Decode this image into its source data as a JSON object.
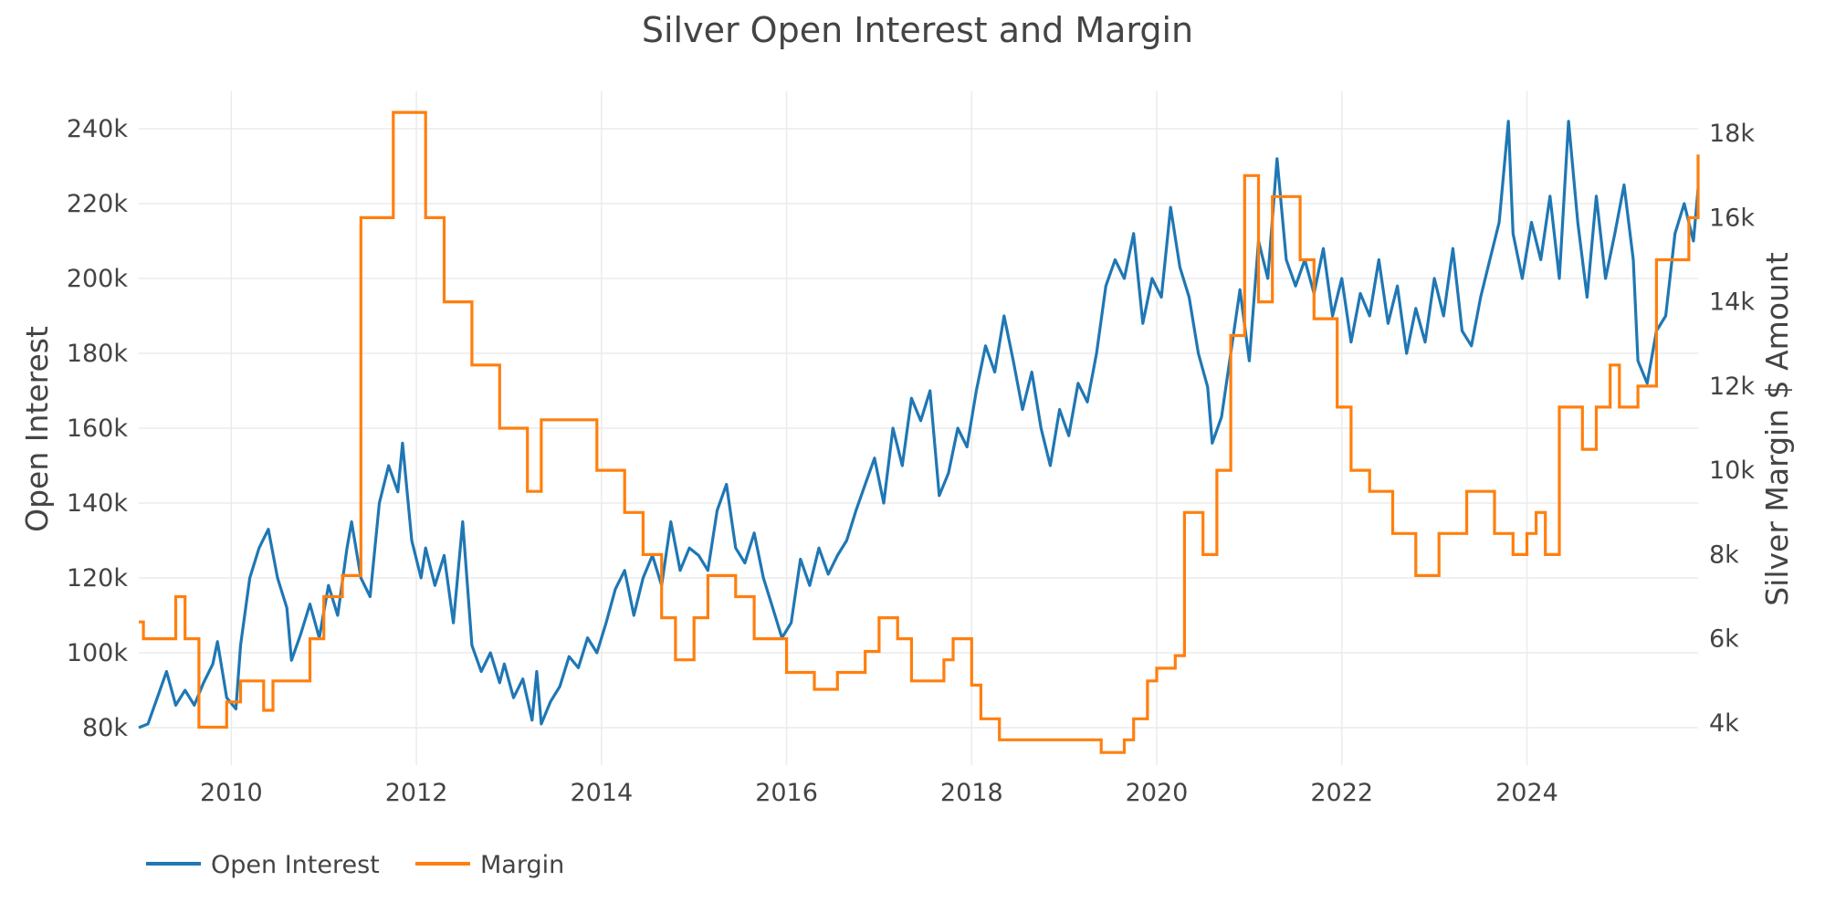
{
  "chart_data": {
    "type": "line",
    "title": "Silver Open Interest and Margin",
    "xlabel": "",
    "ylabel": "Open Interest",
    "y2label": "Silver Margin $ Amount",
    "x_range": [
      2009.0,
      2025.85
    ],
    "x_ticks": [
      2010,
      2012,
      2014,
      2016,
      2018,
      2020,
      2022,
      2024
    ],
    "x_tick_labels": [
      "2010",
      "2012",
      "2014",
      "2016",
      "2018",
      "2020",
      "2022",
      "2024"
    ],
    "y_range": [
      70000,
      250000
    ],
    "y_ticks": [
      80000,
      100000,
      120000,
      140000,
      160000,
      180000,
      200000,
      220000,
      240000
    ],
    "y_tick_labels": [
      "80k",
      "100k",
      "120k",
      "140k",
      "160k",
      "180k",
      "200k",
      "220k",
      "240k"
    ],
    "y2_range": [
      3000,
      19000
    ],
    "y2_ticks": [
      4000,
      6000,
      8000,
      10000,
      12000,
      14000,
      16000,
      18000
    ],
    "y2_tick_labels": [
      "4k",
      "6k",
      "8k",
      "10k",
      "12k",
      "14k",
      "16k",
      "18k"
    ],
    "grid": true,
    "legend_placement": "bottom-left",
    "series": [
      {
        "name": "Open Interest",
        "axis": "left",
        "color": "#1f77b4",
        "points": [
          [
            2009.0,
            80000
          ],
          [
            2009.1,
            81000
          ],
          [
            2009.2,
            88000
          ],
          [
            2009.3,
            95000
          ],
          [
            2009.4,
            86000
          ],
          [
            2009.5,
            90000
          ],
          [
            2009.6,
            86000
          ],
          [
            2009.7,
            92000
          ],
          [
            2009.8,
            97000
          ],
          [
            2009.85,
            103000
          ],
          [
            2009.95,
            88000
          ],
          [
            2010.05,
            85000
          ],
          [
            2010.1,
            102000
          ],
          [
            2010.2,
            120000
          ],
          [
            2010.3,
            128000
          ],
          [
            2010.4,
            133000
          ],
          [
            2010.5,
            120000
          ],
          [
            2010.6,
            112000
          ],
          [
            2010.65,
            98000
          ],
          [
            2010.75,
            105000
          ],
          [
            2010.85,
            113000
          ],
          [
            2010.95,
            104000
          ],
          [
            2011.05,
            118000
          ],
          [
            2011.15,
            110000
          ],
          [
            2011.25,
            128000
          ],
          [
            2011.3,
            135000
          ],
          [
            2011.4,
            120000
          ],
          [
            2011.5,
            115000
          ],
          [
            2011.6,
            140000
          ],
          [
            2011.7,
            150000
          ],
          [
            2011.8,
            143000
          ],
          [
            2011.85,
            156000
          ],
          [
            2011.95,
            130000
          ],
          [
            2012.05,
            120000
          ],
          [
            2012.1,
            128000
          ],
          [
            2012.2,
            118000
          ],
          [
            2012.3,
            126000
          ],
          [
            2012.4,
            108000
          ],
          [
            2012.5,
            135000
          ],
          [
            2012.6,
            102000
          ],
          [
            2012.7,
            95000
          ],
          [
            2012.8,
            100000
          ],
          [
            2012.9,
            92000
          ],
          [
            2012.95,
            97000
          ],
          [
            2013.05,
            88000
          ],
          [
            2013.15,
            93000
          ],
          [
            2013.25,
            82000
          ],
          [
            2013.3,
            95000
          ],
          [
            2013.35,
            81000
          ],
          [
            2013.45,
            87000
          ],
          [
            2013.55,
            91000
          ],
          [
            2013.65,
            99000
          ],
          [
            2013.75,
            96000
          ],
          [
            2013.85,
            104000
          ],
          [
            2013.95,
            100000
          ],
          [
            2014.05,
            108000
          ],
          [
            2014.15,
            117000
          ],
          [
            2014.25,
            122000
          ],
          [
            2014.35,
            110000
          ],
          [
            2014.45,
            120000
          ],
          [
            2014.55,
            126000
          ],
          [
            2014.65,
            118000
          ],
          [
            2014.75,
            135000
          ],
          [
            2014.85,
            122000
          ],
          [
            2014.95,
            128000
          ],
          [
            2015.05,
            126000
          ],
          [
            2015.15,
            122000
          ],
          [
            2015.25,
            138000
          ],
          [
            2015.35,
            145000
          ],
          [
            2015.45,
            128000
          ],
          [
            2015.55,
            124000
          ],
          [
            2015.65,
            132000
          ],
          [
            2015.75,
            120000
          ],
          [
            2015.85,
            112000
          ],
          [
            2015.95,
            104000
          ],
          [
            2016.05,
            108000
          ],
          [
            2016.15,
            125000
          ],
          [
            2016.25,
            118000
          ],
          [
            2016.35,
            128000
          ],
          [
            2016.45,
            121000
          ],
          [
            2016.55,
            126000
          ],
          [
            2016.65,
            130000
          ],
          [
            2016.75,
            138000
          ],
          [
            2016.85,
            145000
          ],
          [
            2016.95,
            152000
          ],
          [
            2017.05,
            140000
          ],
          [
            2017.15,
            160000
          ],
          [
            2017.25,
            150000
          ],
          [
            2017.35,
            168000
          ],
          [
            2017.45,
            162000
          ],
          [
            2017.55,
            170000
          ],
          [
            2017.65,
            142000
          ],
          [
            2017.75,
            148000
          ],
          [
            2017.85,
            160000
          ],
          [
            2017.95,
            155000
          ],
          [
            2018.05,
            170000
          ],
          [
            2018.15,
            182000
          ],
          [
            2018.25,
            175000
          ],
          [
            2018.35,
            190000
          ],
          [
            2018.45,
            178000
          ],
          [
            2018.55,
            165000
          ],
          [
            2018.65,
            175000
          ],
          [
            2018.75,
            160000
          ],
          [
            2018.85,
            150000
          ],
          [
            2018.95,
            165000
          ],
          [
            2019.05,
            158000
          ],
          [
            2019.15,
            172000
          ],
          [
            2019.25,
            167000
          ],
          [
            2019.35,
            180000
          ],
          [
            2019.45,
            198000
          ],
          [
            2019.55,
            205000
          ],
          [
            2019.65,
            200000
          ],
          [
            2019.75,
            212000
          ],
          [
            2019.85,
            188000
          ],
          [
            2019.95,
            200000
          ],
          [
            2020.05,
            195000
          ],
          [
            2020.15,
            219000
          ],
          [
            2020.25,
            203000
          ],
          [
            2020.35,
            195000
          ],
          [
            2020.45,
            180000
          ],
          [
            2020.55,
            171000
          ],
          [
            2020.6,
            156000
          ],
          [
            2020.7,
            163000
          ],
          [
            2020.8,
            180000
          ],
          [
            2020.9,
            197000
          ],
          [
            2021.0,
            178000
          ],
          [
            2021.1,
            210000
          ],
          [
            2021.2,
            200000
          ],
          [
            2021.3,
            232000
          ],
          [
            2021.4,
            205000
          ],
          [
            2021.5,
            198000
          ],
          [
            2021.6,
            205000
          ],
          [
            2021.7,
            196000
          ],
          [
            2021.8,
            208000
          ],
          [
            2021.9,
            190000
          ],
          [
            2022.0,
            200000
          ],
          [
            2022.1,
            183000
          ],
          [
            2022.2,
            196000
          ],
          [
            2022.3,
            190000
          ],
          [
            2022.4,
            205000
          ],
          [
            2022.5,
            188000
          ],
          [
            2022.6,
            198000
          ],
          [
            2022.7,
            180000
          ],
          [
            2022.8,
            192000
          ],
          [
            2022.9,
            183000
          ],
          [
            2023.0,
            200000
          ],
          [
            2023.1,
            190000
          ],
          [
            2023.2,
            208000
          ],
          [
            2023.3,
            186000
          ],
          [
            2023.4,
            182000
          ],
          [
            2023.5,
            195000
          ],
          [
            2023.6,
            205000
          ],
          [
            2023.7,
            215000
          ],
          [
            2023.8,
            242000
          ],
          [
            2023.85,
            212000
          ],
          [
            2023.95,
            200000
          ],
          [
            2024.05,
            215000
          ],
          [
            2024.15,
            205000
          ],
          [
            2024.25,
            222000
          ],
          [
            2024.35,
            200000
          ],
          [
            2024.45,
            242000
          ],
          [
            2024.55,
            215000
          ],
          [
            2024.65,
            195000
          ],
          [
            2024.75,
            222000
          ],
          [
            2024.85,
            200000
          ],
          [
            2024.95,
            212000
          ],
          [
            2025.05,
            225000
          ],
          [
            2025.15,
            205000
          ],
          [
            2025.2,
            178000
          ],
          [
            2025.3,
            172000
          ],
          [
            2025.4,
            186000
          ],
          [
            2025.5,
            190000
          ],
          [
            2025.6,
            212000
          ],
          [
            2025.7,
            220000
          ],
          [
            2025.8,
            210000
          ],
          [
            2025.85,
            224000
          ]
        ]
      },
      {
        "name": "Margin",
        "axis": "right",
        "color": "#ff7f0e",
        "steps": [
          [
            2009.0,
            6400
          ],
          [
            2009.05,
            6000
          ],
          [
            2009.4,
            7000
          ],
          [
            2009.5,
            6000
          ],
          [
            2009.65,
            3900
          ],
          [
            2009.95,
            4500
          ],
          [
            2010.1,
            5000
          ],
          [
            2010.35,
            4300
          ],
          [
            2010.45,
            5000
          ],
          [
            2010.85,
            6000
          ],
          [
            2011.0,
            7000
          ],
          [
            2011.2,
            7500
          ],
          [
            2011.4,
            16000
          ],
          [
            2011.75,
            18500
          ],
          [
            2012.1,
            16000
          ],
          [
            2012.3,
            14000
          ],
          [
            2012.6,
            12500
          ],
          [
            2012.9,
            11000
          ],
          [
            2013.2,
            9500
          ],
          [
            2013.35,
            11200
          ],
          [
            2013.95,
            10000
          ],
          [
            2014.25,
            9000
          ],
          [
            2014.45,
            8000
          ],
          [
            2014.65,
            6500
          ],
          [
            2014.8,
            5500
          ],
          [
            2015.0,
            6500
          ],
          [
            2015.15,
            7500
          ],
          [
            2015.45,
            7000
          ],
          [
            2015.65,
            6000
          ],
          [
            2016.0,
            5200
          ],
          [
            2016.3,
            4800
          ],
          [
            2016.55,
            5200
          ],
          [
            2016.85,
            5700
          ],
          [
            2017.0,
            6500
          ],
          [
            2017.2,
            6000
          ],
          [
            2017.35,
            5000
          ],
          [
            2017.7,
            5500
          ],
          [
            2017.8,
            6000
          ],
          [
            2018.0,
            4900
          ],
          [
            2018.1,
            4100
          ],
          [
            2018.3,
            3600
          ],
          [
            2019.4,
            3300
          ],
          [
            2019.65,
            3600
          ],
          [
            2019.75,
            4100
          ],
          [
            2019.9,
            5000
          ],
          [
            2020.0,
            5300
          ],
          [
            2020.2,
            5600
          ],
          [
            2020.3,
            9000
          ],
          [
            2020.5,
            8000
          ],
          [
            2020.65,
            10000
          ],
          [
            2020.8,
            13200
          ],
          [
            2020.95,
            17000
          ],
          [
            2021.1,
            14000
          ],
          [
            2021.25,
            16500
          ],
          [
            2021.55,
            15000
          ],
          [
            2021.7,
            13600
          ],
          [
            2021.95,
            11500
          ],
          [
            2022.1,
            10000
          ],
          [
            2022.3,
            9500
          ],
          [
            2022.55,
            8500
          ],
          [
            2022.8,
            7500
          ],
          [
            2023.05,
            8500
          ],
          [
            2023.35,
            9500
          ],
          [
            2023.65,
            8500
          ],
          [
            2023.85,
            8000
          ],
          [
            2024.0,
            8500
          ],
          [
            2024.1,
            9000
          ],
          [
            2024.2,
            8000
          ],
          [
            2024.35,
            11500
          ],
          [
            2024.6,
            10500
          ],
          [
            2024.75,
            11500
          ],
          [
            2024.9,
            12500
          ],
          [
            2025.0,
            11500
          ],
          [
            2025.2,
            12000
          ],
          [
            2025.4,
            15000
          ],
          [
            2025.75,
            16000
          ],
          [
            2025.85,
            17500
          ]
        ]
      }
    ]
  }
}
